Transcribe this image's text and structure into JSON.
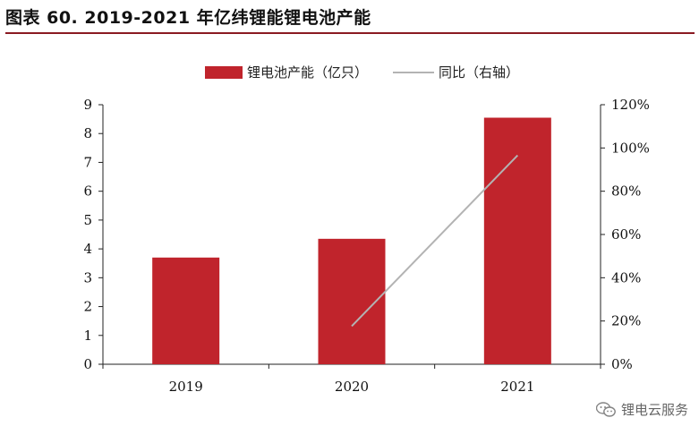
{
  "chart_data": {
    "type": "bar",
    "title": "图表 60. 2019-2021 年亿纬锂能锂电池产能",
    "categories": [
      "2019",
      "2020",
      "2021"
    ],
    "series": [
      {
        "name": "锂电池产能（亿只）",
        "type": "bar",
        "axis": "left",
        "color": "#c0242c",
        "values": [
          3.7,
          4.35,
          8.55
        ]
      },
      {
        "name": "同比（右轴）",
        "type": "line",
        "axis": "right",
        "color": "#b3b3b3",
        "values": [
          null,
          0.176,
          0.966
        ]
      }
    ],
    "y_left": {
      "min": 0,
      "max": 9,
      "step": 1,
      "ticks": [
        "0",
        "1",
        "2",
        "3",
        "4",
        "5",
        "6",
        "7",
        "8",
        "9"
      ]
    },
    "y_right": {
      "min": 0,
      "max": 1.2,
      "step": 0.2,
      "ticks": [
        "0%",
        "20%",
        "40%",
        "60%",
        "80%",
        "100%",
        "120%"
      ]
    },
    "legend_position": "top-center",
    "grid": false
  },
  "watermark": {
    "text": "锂电云服务",
    "icon": "wechat-icon"
  }
}
